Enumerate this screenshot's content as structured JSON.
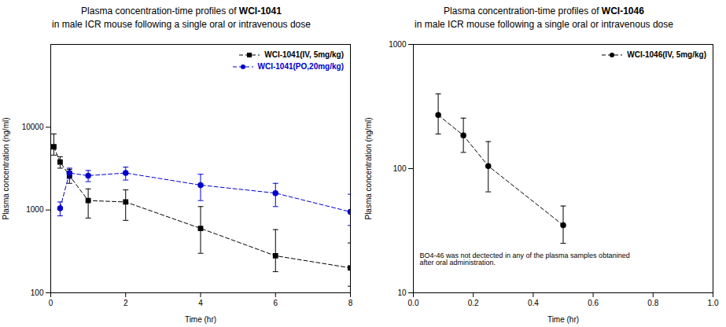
{
  "chart_data": [
    {
      "type": "line",
      "title": "Plasma concentration-time profiles of WCI-1041",
      "subtitle": "in male ICR mouse following a single oral or intravenous dose",
      "xlabel": "Time (hr)",
      "ylabel": "Plasma concentration (ng/ml)",
      "log": "y",
      "grid": false,
      "legend": "upper right",
      "xlim": [
        0,
        8
      ],
      "xticks": [
        0,
        2,
        4,
        6,
        8
      ],
      "ylim": [
        100,
        100000
      ],
      "yticks": [
        100,
        1000,
        10000
      ],
      "series": [
        {
          "name": "WCI-1041(IV, 5mg/kg)",
          "color": "#000000",
          "marker": "square",
          "line_style": "dashed",
          "x": [
            0.083,
            0.25,
            0.5,
            1,
            2,
            4,
            6,
            8
          ],
          "values": [
            5800,
            3800,
            2600,
            1300,
            1250,
            600,
            280,
            200
          ],
          "error_minus": [
            1200,
            600,
            500,
            500,
            500,
            300,
            100,
            80
          ],
          "error_plus": [
            2500,
            600,
            500,
            500,
            500,
            500,
            300,
            200
          ]
        },
        {
          "name": "WCI-1041(PO,20mg/kg)",
          "color": "#0000cc",
          "marker": "circle",
          "line_style": "dashed",
          "x": [
            0.25,
            0.5,
            1,
            2,
            4,
            6,
            8
          ],
          "values": [
            1050,
            2800,
            2600,
            2800,
            2000,
            1600,
            950
          ],
          "error_minus": [
            200,
            400,
            400,
            500,
            700,
            500,
            300
          ],
          "error_plus": [
            200,
            400,
            400,
            500,
            700,
            500,
            600
          ]
        }
      ]
    },
    {
      "type": "line",
      "title": "Plasma concentration-time profiles of WCI-1046",
      "subtitle": "in male ICR mouse following a single oral or intravenous dose",
      "xlabel": "Time (hr)",
      "ylabel": "Plasma concentration (ng/ml)",
      "log": "y",
      "grid": false,
      "legend": "upper right",
      "xlim": [
        0.0,
        1.0
      ],
      "xticks": [
        {
          "value": 0,
          "label": "0.0"
        },
        0.2,
        0.4,
        0.6,
        0.8,
        {
          "value": 1,
          "label": "1.0"
        }
      ],
      "ylim": [
        10,
        1000
      ],
      "yticks": [
        10,
        100,
        1000
      ],
      "annotations": [
        "BO4-46 was not dectected in any of the plasma samples obtanined\nafter oral administration."
      ],
      "series": [
        {
          "name": "WCI-1046(IV, 5mg/kg)",
          "color": "#000000",
          "marker": "circle",
          "line_style": "dashed",
          "x": [
            0.083,
            0.167,
            0.25,
            0.5
          ],
          "values": [
            270,
            185,
            105,
            35
          ],
          "error_minus": [
            80,
            50,
            40,
            10
          ],
          "error_plus": [
            130,
            70,
            60,
            15
          ]
        }
      ]
    }
  ]
}
